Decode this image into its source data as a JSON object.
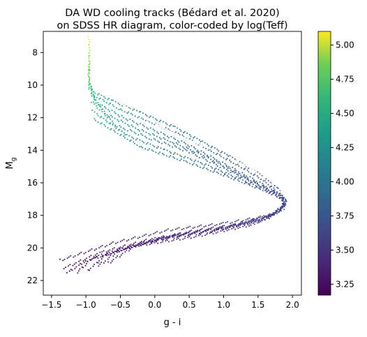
{
  "chart_data": {
    "type": "scatter",
    "title_line1": "DA WD cooling tracks (Bédard et al. 2020)",
    "title_line2": "on SDSS HR diagram,  color-coded by log(Teff)",
    "xlabel": "g - i",
    "ylabel_main": "M",
    "ylabel_sub": "g",
    "xlim": [
      -1.62,
      2.13
    ],
    "ylim": [
      22.9,
      6.7
    ],
    "y_inverted": true,
    "xticks": [
      -1.5,
      -1.0,
      -0.5,
      0.0,
      0.5,
      1.0,
      1.5,
      2.0
    ],
    "xtick_labels": [
      "−1.5",
      "−1.0",
      "−0.5",
      "0.0",
      "0.5",
      "1.0",
      "1.5",
      "2.0"
    ],
    "yticks": [
      8,
      10,
      12,
      14,
      16,
      18,
      20,
      22
    ],
    "ytick_labels": [
      "8",
      "10",
      "12",
      "14",
      "16",
      "18",
      "20",
      "22"
    ],
    "colorbar": {
      "label": "log(Teff)",
      "colormap": "viridis",
      "range": [
        3.17,
        5.1
      ],
      "ticks": [
        3.25,
        3.5,
        3.75,
        4.0,
        4.25,
        4.5,
        4.75,
        5.0
      ],
      "tick_labels": [
        "3.25",
        "3.50",
        "3.75",
        "4.00",
        "4.25",
        "4.50",
        "4.75",
        "5.00"
      ]
    },
    "series": [
      {
        "tracks": [
          {
            "points": [
              [
                -0.96,
                7.1,
                5.08
              ],
              [
                -0.95,
                7.6,
                5.0
              ],
              [
                -0.95,
                8.4,
                4.9
              ],
              [
                -0.96,
                9.4,
                4.75
              ],
              [
                -0.95,
                10.3,
                4.6
              ],
              [
                -0.6,
                11.0,
                4.35
              ],
              [
                -0.2,
                11.7,
                4.15
              ],
              [
                0.3,
                12.6,
                4.0
              ],
              [
                0.7,
                13.5,
                3.9
              ],
              [
                1.1,
                14.4,
                3.82
              ],
              [
                1.5,
                15.4,
                3.75
              ],
              [
                1.8,
                16.4,
                3.68
              ],
              [
                1.92,
                17.2,
                3.6
              ],
              [
                1.7,
                18.0,
                3.52
              ],
              [
                1.0,
                18.5,
                3.45
              ],
              [
                0.2,
                18.9,
                3.38
              ],
              [
                -0.6,
                19.7,
                3.3
              ],
              [
                -1.4,
                20.8,
                3.22
              ]
            ]
          },
          {
            "points": [
              [
                -0.95,
                8.6,
                4.95
              ],
              [
                -0.95,
                9.6,
                4.8
              ],
              [
                -0.9,
                10.6,
                4.55
              ],
              [
                -0.5,
                11.5,
                4.3
              ],
              [
                -0.1,
                12.2,
                4.12
              ],
              [
                0.4,
                13.1,
                3.98
              ],
              [
                0.8,
                14.0,
                3.88
              ],
              [
                1.2,
                14.9,
                3.8
              ],
              [
                1.6,
                15.9,
                3.72
              ],
              [
                1.85,
                16.8,
                3.64
              ],
              [
                1.88,
                17.5,
                3.57
              ],
              [
                1.6,
                18.3,
                3.5
              ],
              [
                0.9,
                18.9,
                3.42
              ],
              [
                0.0,
                19.4,
                3.35
              ],
              [
                -0.8,
                20.3,
                3.27
              ],
              [
                -1.35,
                21.3,
                3.2
              ]
            ]
          },
          {
            "points": [
              [
                -0.94,
                9.9,
                4.7
              ],
              [
                -0.85,
                11.1,
                4.45
              ],
              [
                -0.45,
                12.0,
                4.25
              ],
              [
                0.0,
                12.8,
                4.1
              ],
              [
                0.45,
                13.6,
                3.96
              ],
              [
                0.9,
                14.6,
                3.86
              ],
              [
                1.3,
                15.5,
                3.78
              ],
              [
                1.7,
                16.4,
                3.7
              ],
              [
                1.9,
                17.0,
                3.62
              ],
              [
                1.8,
                17.8,
                3.55
              ],
              [
                1.4,
                18.6,
                3.47
              ],
              [
                0.6,
                19.3,
                3.4
              ],
              [
                -0.3,
                19.9,
                3.32
              ],
              [
                -1.0,
                20.8,
                3.25
              ],
              [
                -1.3,
                21.6,
                3.19
              ]
            ]
          },
          {
            "points": [
              [
                -0.93,
                10.5,
                4.6
              ],
              [
                -0.7,
                11.8,
                4.35
              ],
              [
                -0.25,
                12.7,
                4.18
              ],
              [
                0.25,
                13.5,
                4.03
              ],
              [
                0.7,
                14.3,
                3.92
              ],
              [
                1.1,
                15.2,
                3.82
              ],
              [
                1.5,
                16.1,
                3.74
              ],
              [
                1.85,
                16.9,
                3.66
              ],
              [
                1.87,
                17.6,
                3.58
              ],
              [
                1.5,
                18.3,
                3.5
              ],
              [
                0.8,
                19.0,
                3.43
              ],
              [
                -0.1,
                19.6,
                3.35
              ],
              [
                -0.9,
                20.6,
                3.27
              ],
              [
                -1.15,
                21.6,
                3.21
              ]
            ]
          },
          {
            "points": [
              [
                -0.92,
                11.0,
                4.55
              ],
              [
                -0.55,
                12.5,
                4.3
              ],
              [
                -0.05,
                13.3,
                4.12
              ],
              [
                0.5,
                14.1,
                3.98
              ],
              [
                0.95,
                15.0,
                3.87
              ],
              [
                1.4,
                15.9,
                3.78
              ],
              [
                1.8,
                16.7,
                3.7
              ],
              [
                1.9,
                17.3,
                3.62
              ],
              [
                1.65,
                18.1,
                3.54
              ],
              [
                1.0,
                18.8,
                3.46
              ],
              [
                0.1,
                19.4,
                3.38
              ],
              [
                -0.7,
                20.4,
                3.3
              ],
              [
                -1.0,
                21.5,
                3.23
              ]
            ]
          },
          {
            "points": [
              [
                -0.9,
                11.6,
                4.5
              ],
              [
                -0.4,
                13.1,
                4.22
              ],
              [
                0.15,
                14.0,
                4.06
              ],
              [
                0.75,
                14.9,
                3.93
              ],
              [
                1.25,
                15.8,
                3.82
              ],
              [
                1.7,
                16.6,
                3.73
              ],
              [
                1.92,
                17.2,
                3.65
              ],
              [
                1.75,
                17.9,
                3.57
              ],
              [
                1.15,
                18.6,
                3.49
              ],
              [
                0.3,
                19.2,
                3.41
              ],
              [
                -0.5,
                20.1,
                3.33
              ],
              [
                -0.85,
                21.2,
                3.26
              ]
            ]
          },
          {
            "points": [
              [
                -0.88,
                12.1,
                4.45
              ],
              [
                -0.2,
                13.8,
                4.15
              ],
              [
                0.45,
                14.7,
                4.0
              ],
              [
                1.05,
                15.6,
                3.87
              ],
              [
                1.6,
                16.5,
                3.76
              ],
              [
                1.9,
                17.1,
                3.67
              ],
              [
                1.8,
                17.8,
                3.59
              ],
              [
                1.3,
                18.5,
                3.51
              ],
              [
                0.5,
                19.0,
                3.43
              ],
              [
                -0.3,
                19.9,
                3.35
              ],
              [
                -0.7,
                21.0,
                3.28
              ]
            ]
          }
        ],
        "white_gap_line": [
          [
            -0.95,
            9.2
          ],
          [
            -0.4,
            10.8
          ],
          [
            0.0,
            11.8
          ],
          [
            0.6,
            12.9
          ],
          [
            1.1,
            13.9
          ],
          [
            1.5,
            14.9
          ],
          [
            1.85,
            16.2
          ]
        ],
        "white_gap_line_2": [
          [
            -0.93,
            9.8
          ],
          [
            -0.3,
            11.7
          ],
          [
            0.3,
            13.0
          ],
          [
            0.9,
            14.1
          ],
          [
            1.4,
            15.1
          ],
          [
            1.75,
            16.3
          ],
          [
            1.95,
            17.0
          ]
        ]
      }
    ],
    "grid": false,
    "legend": "none"
  }
}
